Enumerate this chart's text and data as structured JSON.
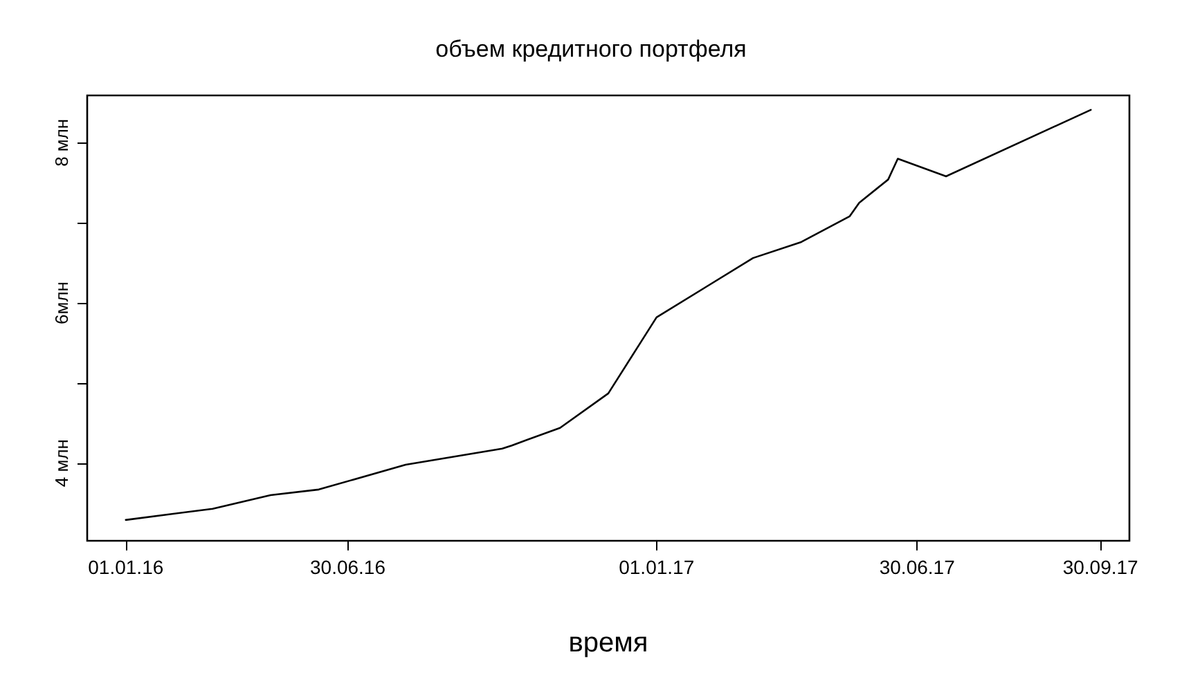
{
  "chart_data": {
    "type": "line",
    "title": "объем кредитного портфеля",
    "xlabel": "время",
    "categories": [
      null,
      null,
      null,
      null,
      "01.01.16",
      null,
      null,
      null,
      null,
      null,
      null,
      null,
      null,
      null,
      null,
      null,
      null,
      null,
      null,
      null,
      null,
      null,
      null,
      null,
      null,
      null,
      null,
      "30.06.16",
      null,
      null,
      null,
      null,
      null,
      null,
      null,
      null,
      null,
      null,
      null,
      null,
      null,
      null,
      null,
      null,
      null,
      null,
      null,
      null,
      null,
      null,
      null,
      null,
      null,
      null,
      null,
      null,
      null,
      null,
      null,
      "01.01.17",
      null,
      null,
      null,
      null,
      null,
      null,
      null,
      null,
      null,
      null,
      null,
      null,
      null,
      null,
      null,
      null,
      null,
      null,
      null,
      null,
      null,
      null,
      null,
      null,
      null,
      null,
      "30.06.17",
      null,
      null,
      null,
      null,
      null,
      null,
      null,
      null,
      null,
      null,
      null,
      null,
      null,
      null,
      null,
      null,
      null,
      null,
      "30.09.17",
      null,
      null,
      null
    ],
    "series": [
      {
        "color": "#000000",
        "values": [
          null,
          null,
          null,
          null,
          3.29,
          null,
          null,
          null,
          null,
          null,
          null,
          null,
          null,
          3.43,
          null,
          null,
          null,
          null,
          null,
          3.6,
          null,
          null,
          null,
          null,
          3.67,
          null,
          null,
          null,
          null,
          null,
          null,
          null,
          null,
          3.98,
          null,
          null,
          null,
          null,
          null,
          null,
          null,
          null,
          null,
          4.18,
          4.22,
          null,
          null,
          null,
          null,
          4.44,
          null,
          null,
          null,
          null,
          4.87,
          null,
          null,
          5.44,
          null,
          5.82,
          null,
          null,
          null,
          null,
          6.19,
          null,
          null,
          null,
          null,
          6.56,
          null,
          null,
          null,
          null,
          6.76,
          null,
          null,
          null,
          null,
          7.08,
          7.25,
          null,
          null,
          7.54,
          7.8,
          null,
          null,
          null,
          null,
          7.58,
          null,
          null,
          null,
          null,
          null,
          null,
          null,
          null,
          null,
          null,
          null,
          null,
          null,
          null,
          8.41,
          null,
          null,
          null,
          null
        ]
      }
    ],
    "ylim": [
      3.03,
      8.59
    ],
    "yticks": [
      {
        "value": 4,
        "label": "4 млн"
      },
      {
        "value": 5,
        "label": null
      },
      {
        "value": 6,
        "label": "6млн"
      },
      {
        "value": 7,
        "label": null
      },
      {
        "value": 8,
        "label": "8 млн"
      }
    ],
    "grid": false,
    "marker": "none",
    "line_style": "solid"
  }
}
